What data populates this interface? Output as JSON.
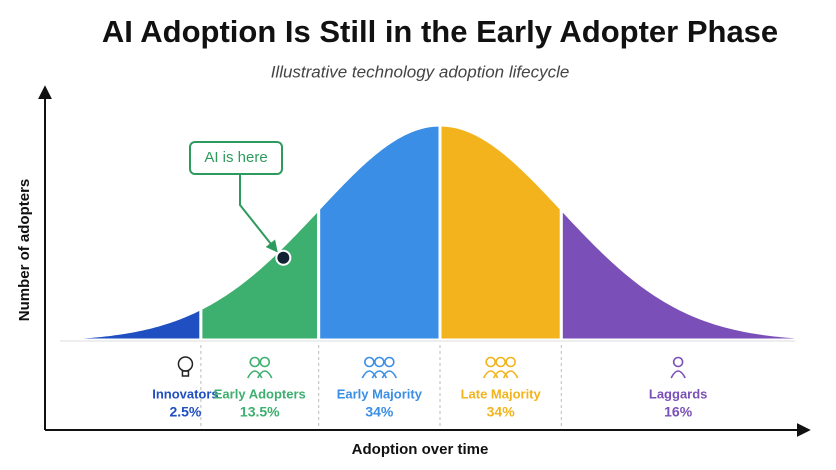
{
  "chart_data": {
    "type": "bell",
    "title": "AI Adoption Is Still in the Early Adopter Phase",
    "subtitle": "Illustrative technology adoption lifecycle",
    "x_label": "Adoption over time",
    "y_label": "Number of adopters",
    "annotation": "AI is here",
    "categories": [
      "Innovators",
      "Early Adopters",
      "Early Majority",
      "Late Majority",
      "Laggards"
    ],
    "values": [
      2.5,
      13.5,
      34,
      34,
      16
    ],
    "value_labels": [
      "2.5%",
      "13.5%",
      "34%",
      "34%",
      "16%"
    ],
    "colors": [
      "#1f4fc1",
      "#3daf6e",
      "#3a8ee6",
      "#f2b31d",
      "#7b4fb8"
    ]
  }
}
